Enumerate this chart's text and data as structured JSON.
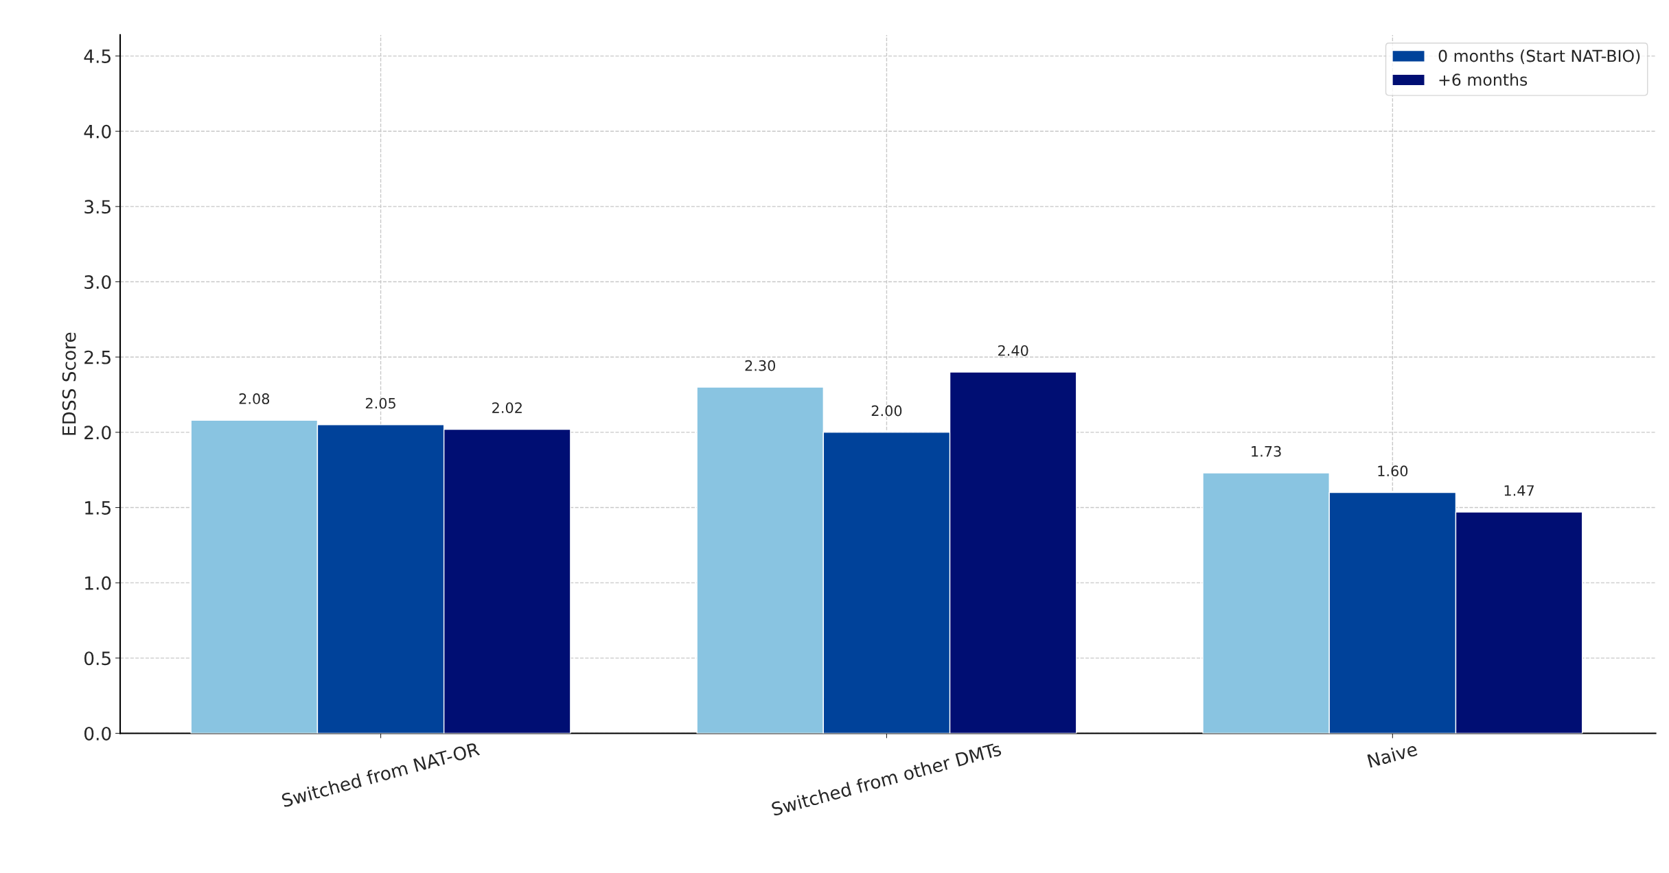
{
  "chart_data": {
    "type": "bar",
    "ylabel": "EDSS Score",
    "categories": [
      "Switched from NAT-OR",
      "Switched from other DMTs",
      "Naive"
    ],
    "series": [
      {
        "color": "#89c4e1",
        "values": [
          2.08,
          2.3,
          1.73
        ],
        "value_labels": [
          "2.08",
          "2.30",
          "1.73"
        ]
      },
      {
        "name": "0 months (Start NAT-BIO)",
        "color": "#00429a",
        "values": [
          2.05,
          2.0,
          1.6
        ],
        "value_labels": [
          "2.05",
          "2.00",
          "1.60"
        ]
      },
      {
        "name": "+6 months",
        "color": "#000e73",
        "values": [
          2.02,
          2.4,
          1.47
        ],
        "value_labels": [
          "2.02",
          "2.40",
          "1.47"
        ]
      }
    ],
    "ylim": [
      0,
      4.64
    ],
    "yticks": [
      {
        "value": 0,
        "label": "0.0"
      },
      0.5,
      {
        "value": 1,
        "label": "1.0"
      },
      1.5,
      {
        "value": 2,
        "label": "2.0"
      },
      2.5,
      {
        "value": 3,
        "label": "3.0"
      },
      3.5,
      {
        "value": 4,
        "label": "4.0"
      },
      4.5
    ],
    "grid": true,
    "legend": "top right"
  }
}
